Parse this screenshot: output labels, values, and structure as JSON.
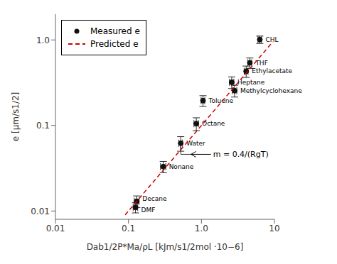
{
  "chart_data": {
    "type": "scatter",
    "log": true,
    "xlabel": "Dab1/2P*Ma/ρL [kJm/s1/2mol ·10−6]",
    "ylabel": "e [μm/s1/2]",
    "xlim": [
      0.01,
      10
    ],
    "ylim": [
      0.008,
      2.0
    ],
    "xticks": [
      0.01,
      0.1,
      {
        "value": 1.0,
        "label": "1.0"
      },
      10
    ],
    "yticks": [
      0.01,
      0.1,
      {
        "value": 1.0,
        "label": "1.0"
      }
    ],
    "legend": "upper left",
    "series": [
      {
        "name": "Measured e",
        "type": "scatter",
        "color": "#111111",
        "marker": "circle",
        "labels": [
          "Decane",
          "DMF",
          "Nonane",
          "Water",
          "Octane",
          "Toluene",
          "Heptane",
          "Methylcyclohexane",
          "Ethylacetate",
          "THF",
          "CHL"
        ],
        "x": [
          0.13,
          0.125,
          0.3,
          0.52,
          0.85,
          1.05,
          2.6,
          2.85,
          4.1,
          4.6,
          6.3
        ],
        "values": [
          0.013,
          0.011,
          0.033,
          0.062,
          0.105,
          0.195,
          0.32,
          0.255,
          0.43,
          0.54,
          1.01
        ],
        "xerr": [
          0.01,
          0.009,
          0.025,
          0.03,
          0.06,
          0.06,
          0.18,
          0.2,
          0.25,
          0.28,
          0.35
        ],
        "yerr": [
          0.002,
          0.0015,
          0.005,
          0.012,
          0.018,
          0.028,
          0.05,
          0.04,
          0.065,
          0.075,
          0.1
        ]
      },
      {
        "name": "Predicted e",
        "type": "line",
        "color": "#cc0000",
        "line_style": "dashed",
        "x": [
          0.09,
          9.5
        ],
        "values": [
          0.009,
          0.95
        ]
      }
    ],
    "lines": [
      {
        "x": [
          0.52,
          0.52,
          0.75
        ],
        "y": [
          0.062,
          0.046,
          0.046
        ]
      }
    ],
    "annotations": [
      {
        "text": "m = 0.4/(RgT)",
        "x": 1.35,
        "y": 0.046,
        "arrow_x": 0.72,
        "arrow_y": 0.046
      }
    ]
  }
}
